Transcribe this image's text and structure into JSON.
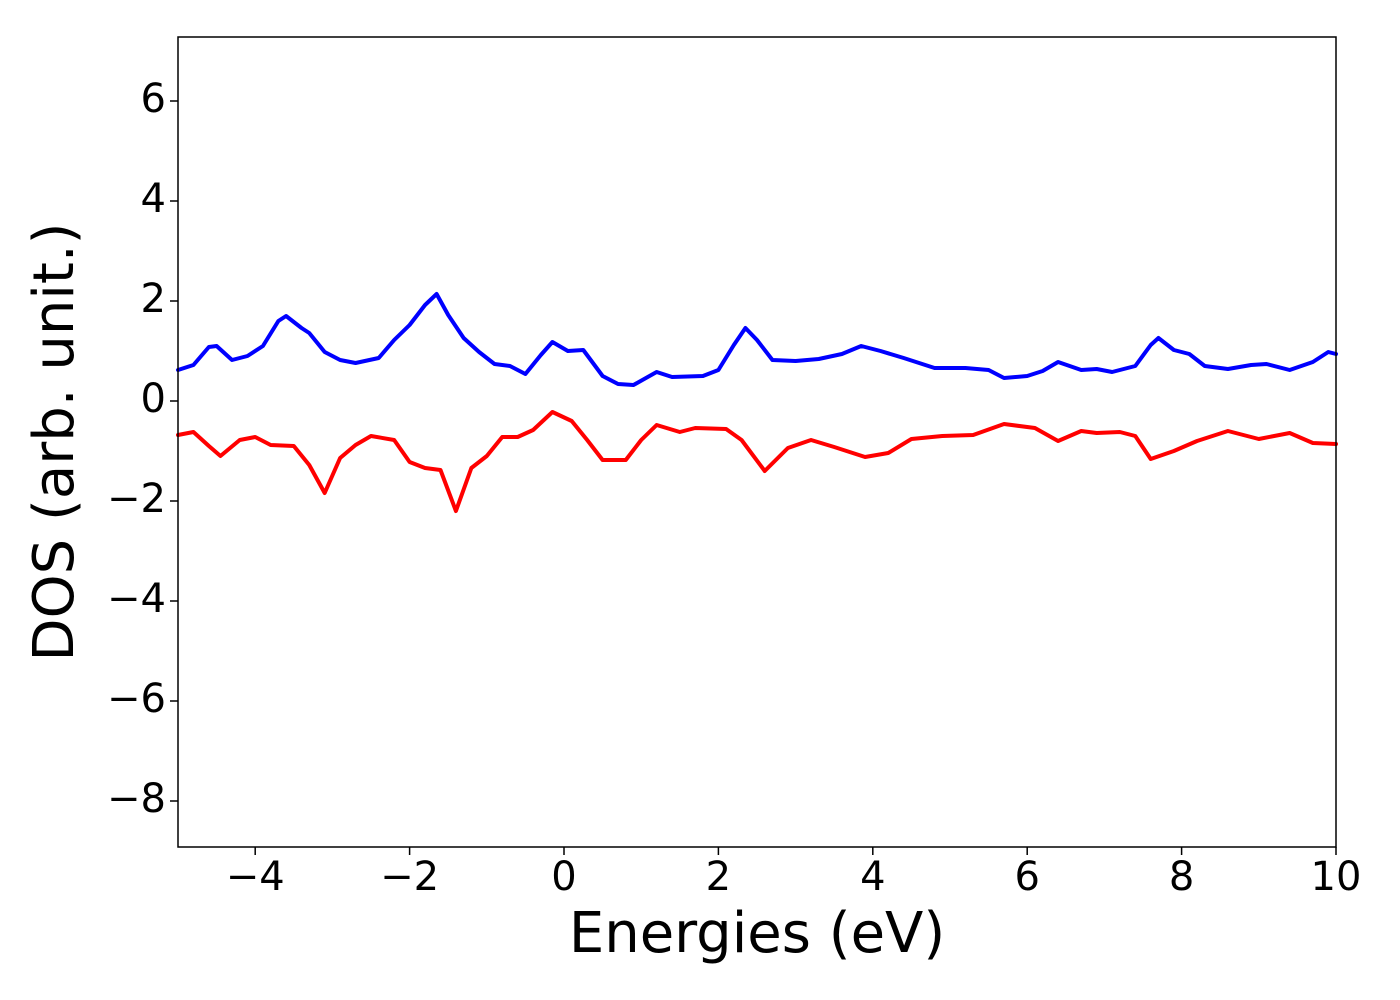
{
  "chart_data": {
    "type": "line",
    "xlabel": "Energies (eV)",
    "ylabel": "DOS (arb. unit.)",
    "xlim": [
      -5,
      10
    ],
    "ylim": [
      -8.92,
      7.28
    ],
    "xticks": [
      {
        "value": -4,
        "label": "−4"
      },
      {
        "value": -2,
        "label": "−2"
      },
      0,
      2,
      4,
      6,
      8,
      10
    ],
    "yticks": [
      {
        "value": -8,
        "label": "−8"
      },
      {
        "value": -6,
        "label": "−6"
      },
      {
        "value": -4,
        "label": "−4"
      },
      {
        "value": -2,
        "label": "−2"
      },
      0,
      2,
      4,
      6
    ],
    "series": [
      {
        "color": "#0000ff",
        "x": [
          -5,
          -4.8,
          -4.6,
          -4.5,
          -4.3,
          -4.1,
          -3.9,
          -3.7,
          -3.6,
          -3.4,
          -3.3,
          -3.1,
          -2.9,
          -2.7,
          -2.4,
          -2.2,
          -2.0,
          -1.8,
          -1.65,
          -1.5,
          -1.3,
          -1.1,
          -0.9,
          -0.7,
          -0.5,
          -0.3,
          -0.15,
          0.05,
          0.25,
          0.5,
          0.7,
          0.9,
          1.2,
          1.4,
          1.8,
          2.0,
          2.2,
          2.35,
          2.5,
          2.7,
          3.0,
          3.3,
          3.6,
          3.85,
          4.1,
          4.4,
          4.8,
          5.2,
          5.5,
          5.7,
          6.0,
          6.2,
          6.4,
          6.7,
          6.9,
          7.1,
          7.4,
          7.6,
          7.7,
          7.9,
          8.1,
          8.3,
          8.6,
          8.9,
          9.1,
          9.4,
          9.7,
          9.9,
          10
        ],
        "values": [
          0.62,
          0.72,
          1.08,
          1.1,
          0.82,
          0.9,
          1.1,
          1.6,
          1.7,
          1.46,
          1.36,
          0.98,
          0.82,
          0.76,
          0.86,
          1.22,
          1.52,
          1.92,
          2.14,
          1.72,
          1.26,
          0.98,
          0.74,
          0.7,
          0.54,
          0.92,
          1.18,
          1.0,
          1.02,
          0.5,
          0.34,
          0.32,
          0.58,
          0.48,
          0.5,
          0.62,
          1.12,
          1.46,
          1.22,
          0.82,
          0.8,
          0.84,
          0.94,
          1.1,
          1.0,
          0.86,
          0.66,
          0.66,
          0.62,
          0.46,
          0.5,
          0.6,
          0.78,
          0.62,
          0.64,
          0.58,
          0.7,
          1.12,
          1.26,
          1.02,
          0.94,
          0.7,
          0.64,
          0.72,
          0.74,
          0.62,
          0.78,
          0.98,
          0.94
        ]
      },
      {
        "color": "#ff0000",
        "x": [
          -5,
          -4.8,
          -4.6,
          -4.45,
          -4.2,
          -4.0,
          -3.8,
          -3.5,
          -3.3,
          -3.1,
          -2.9,
          -2.7,
          -2.5,
          -2.2,
          -2.0,
          -1.8,
          -1.6,
          -1.4,
          -1.2,
          -1.0,
          -0.8,
          -0.6,
          -0.4,
          -0.15,
          0.1,
          0.3,
          0.5,
          0.8,
          1.0,
          1.2,
          1.5,
          1.7,
          2.1,
          2.3,
          2.6,
          2.9,
          3.2,
          3.5,
          3.9,
          4.2,
          4.5,
          4.9,
          5.3,
          5.7,
          6.1,
          6.4,
          6.7,
          6.9,
          7.2,
          7.4,
          7.6,
          7.9,
          8.2,
          8.6,
          9.0,
          9.4,
          9.7,
          10
        ],
        "values": [
          -0.68,
          -0.62,
          -0.9,
          -1.1,
          -0.78,
          -0.72,
          -0.88,
          -0.9,
          -1.28,
          -1.84,
          -1.14,
          -0.88,
          -0.7,
          -0.78,
          -1.22,
          -1.34,
          -1.38,
          -2.2,
          -1.34,
          -1.1,
          -0.72,
          -0.72,
          -0.58,
          -0.22,
          -0.4,
          -0.78,
          -1.18,
          -1.18,
          -0.78,
          -0.48,
          -0.62,
          -0.54,
          -0.56,
          -0.78,
          -1.4,
          -0.94,
          -0.78,
          -0.92,
          -1.12,
          -1.04,
          -0.76,
          -0.7,
          -0.68,
          -0.46,
          -0.54,
          -0.8,
          -0.6,
          -0.64,
          -0.62,
          -0.7,
          -1.16,
          -1.0,
          -0.8,
          -0.6,
          -0.76,
          -0.64,
          -0.84,
          -0.86
        ]
      }
    ]
  }
}
